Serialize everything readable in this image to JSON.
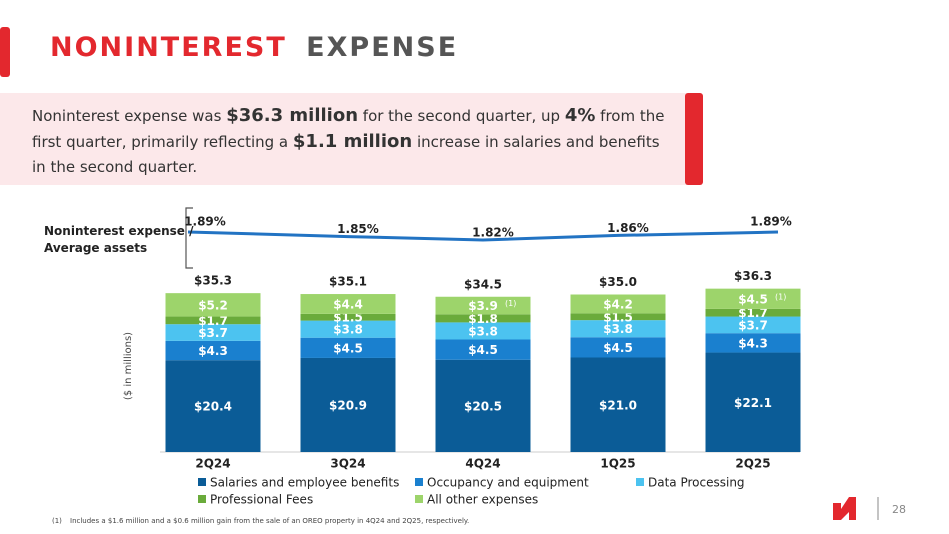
{
  "header": {
    "title_parts": [
      "NONINTEREST",
      "EXPENSE"
    ]
  },
  "callout": [
    {
      "text": "Noninterest expense was ",
      "bold": false
    },
    {
      "text": "$36.3 million",
      "bold": true
    },
    {
      "text": " for the second quarter, up ",
      "bold": false
    },
    {
      "text": "4%",
      "bold": true
    },
    {
      "text": " from the first quarter, primarily reflecting a ",
      "bold": false
    },
    {
      "text": "$1.1 million",
      "bold": true
    },
    {
      "text": " increase in salaries and benefits in the second quarter.",
      "bold": false
    }
  ],
  "chart_data": {
    "type": "stacked_bar",
    "y_label": "($ in millions)",
    "categories": [
      "2Q24",
      "3Q24",
      "4Q24",
      "1Q25",
      "2Q25"
    ],
    "series": [
      {
        "name": "Salaries and employee benefits",
        "color": "#0b5c97",
        "values": [
          20.4,
          20.9,
          20.5,
          21.0,
          22.1
        ],
        "value_labels": [
          "$20.4",
          "$20.9",
          "$20.5",
          "$21.0",
          "$22.1"
        ]
      },
      {
        "name": "Occupancy and equipment",
        "color": "#1a80cf",
        "values": [
          4.3,
          4.5,
          4.5,
          4.5,
          4.3
        ],
        "value_labels": [
          "$4.3",
          "$4.5",
          "$4.5",
          "$4.5",
          "$4.3"
        ]
      },
      {
        "name": "Data Processing",
        "color": "#4cc3f0",
        "values": [
          3.7,
          3.8,
          3.8,
          3.8,
          3.7
        ],
        "value_labels": [
          "$3.7",
          "$3.8",
          "$3.8",
          "$3.8",
          "$3.7"
        ]
      },
      {
        "name": "Professional Fees",
        "color": "#6aab3b",
        "values": [
          1.7,
          1.5,
          1.8,
          1.5,
          1.7
        ],
        "value_labels": [
          "$1.7",
          "$1.5",
          "$1.8",
          "$1.5",
          "$1.7"
        ]
      },
      {
        "name": "All other expenses",
        "color": "#9dd46b",
        "values": [
          5.2,
          4.4,
          3.9,
          4.2,
          4.5
        ],
        "value_labels": [
          "$5.2",
          "$4.4",
          "$3.9",
          "$4.2",
          "$4.5"
        ],
        "notes": [
          null,
          null,
          "(1)",
          null,
          "(1)"
        ]
      }
    ],
    "totals": [
      35.3,
      35.1,
      34.5,
      35.0,
      36.3
    ],
    "total_labels": [
      "$35.3",
      "$35.1",
      "$34.5",
      "$35.0",
      "$36.3"
    ],
    "ratio": {
      "name": "Noninterest expense / Average assets",
      "color": "#2273c3",
      "values": [
        1.89,
        1.85,
        1.82,
        1.86,
        1.89
      ],
      "value_labels": [
        "1.89%",
        "1.85%",
        "1.82%",
        "1.86%",
        "1.89%"
      ]
    }
  },
  "footnote": {
    "marker": "(1)",
    "text": "Includes a $1.6 million and a $0.6 million gain from the sale of an OREO property in 4Q24 and 2Q25, respectively."
  },
  "page_number": 28
}
